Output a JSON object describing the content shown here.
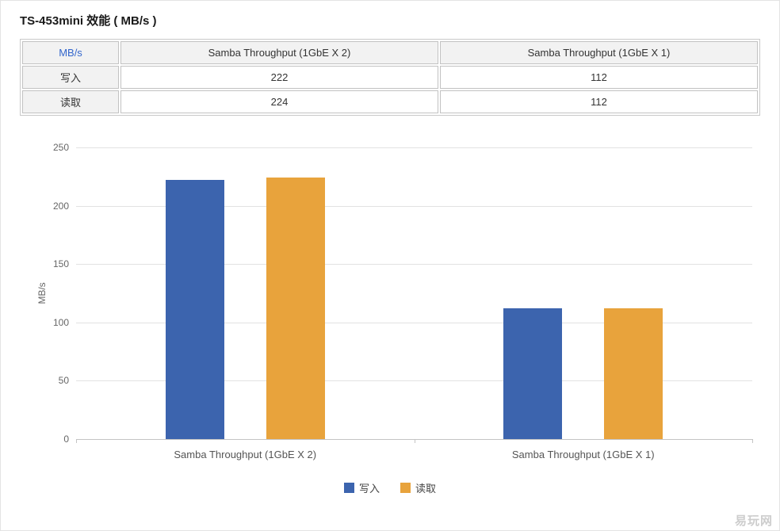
{
  "page": {
    "title": "TS-453mini 效能 ( MB/s )",
    "watermark": "易玩网"
  },
  "colors": {
    "accent": "#3366cc",
    "border": "#c9c9c9",
    "header_bg": "#f2f2f2",
    "text": "#333333",
    "muted": "#666666",
    "grid": "#e2e2e2",
    "axis": "#c4c4c4",
    "watermark": "#cdcdcd"
  },
  "table": {
    "header": [
      "MB/s",
      "Samba Throughput (1GbE X 2)",
      "Samba Throughput (1GbE X 1)"
    ],
    "rows": [
      {
        "label": "写入",
        "values": [
          "222",
          "112"
        ]
      },
      {
        "label": "读取",
        "values": [
          "224",
          "112"
        ]
      }
    ]
  },
  "chart_data": {
    "type": "bar",
    "title": "TS-453mini 效能 ( MB/s )",
    "categories": [
      "Samba Throughput (1GbE X 2)",
      "Samba Throughput (1GbE X 1)"
    ],
    "series": [
      {
        "name": "写入",
        "color": "#3c64ae",
        "values": [
          222,
          112
        ]
      },
      {
        "name": "读取",
        "color": "#e8a33c",
        "values": [
          224,
          112
        ]
      }
    ],
    "xlabel": "",
    "ylabel": "MB/s",
    "ylim": [
      0,
      250
    ],
    "yticks": [
      0,
      50,
      100,
      150,
      200,
      250
    ],
    "grid": true,
    "legend_position": "bottom"
  }
}
